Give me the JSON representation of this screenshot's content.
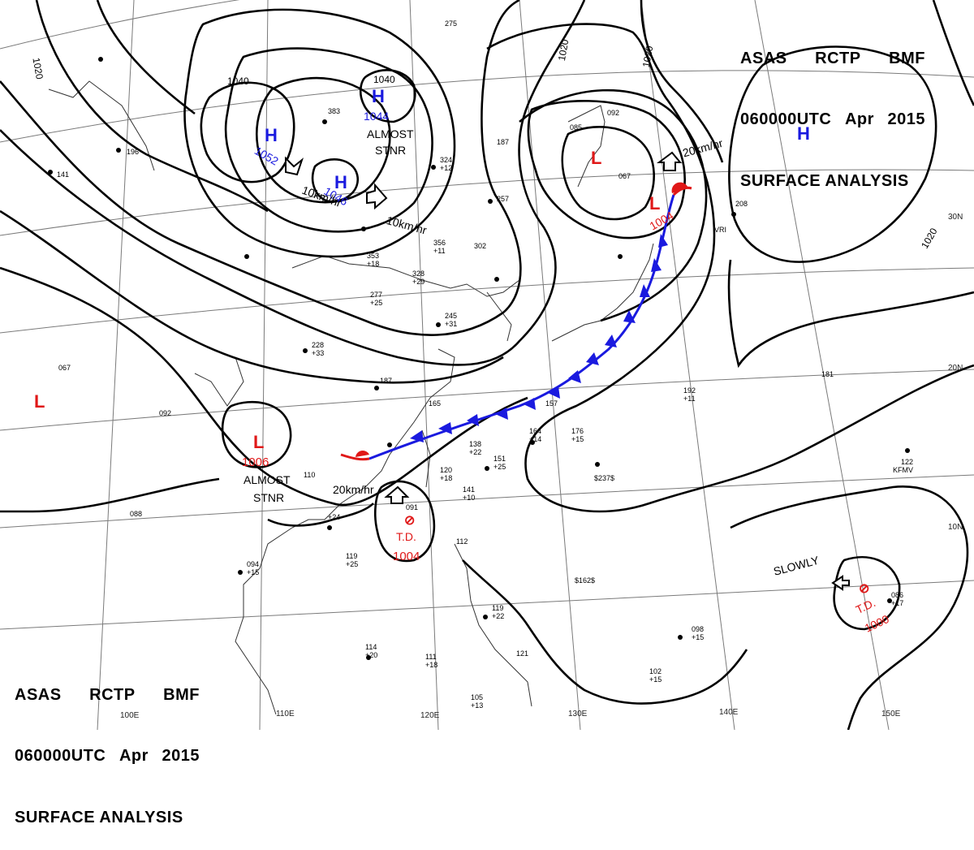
{
  "header": {
    "line1": [
      "ASAS",
      "RCTP",
      "BMF"
    ],
    "line2": [
      "060000UTC",
      "Apr",
      "2015"
    ],
    "line3": "SURFACE ANALYSIS"
  },
  "colors": {
    "high": "#1a1adf",
    "low": "#e01818",
    "isobar": "#000000",
    "grid": "#7a7a7a",
    "cold_front": "#1a1adf",
    "warm_front": "#e01818"
  },
  "latitude_labels": [
    "30N",
    "20N",
    "10N"
  ],
  "longitude_labels": [
    "100E",
    "110E",
    "120E",
    "130E",
    "140E",
    "150E"
  ],
  "isobar_labels": [
    "1020",
    "1020",
    "1020",
    "1020",
    "1040",
    "1040"
  ],
  "systems": [
    {
      "type": "H",
      "pressure": "1052"
    },
    {
      "type": "H",
      "pressure": "1044"
    },
    {
      "type": "H",
      "pressure": "1046"
    },
    {
      "type": "H",
      "pressure": ""
    },
    {
      "type": "L",
      "pressure": "1004"
    },
    {
      "type": "L",
      "pressure": "1006"
    },
    {
      "type": "L",
      "pressure": ""
    },
    {
      "type": "T.D.",
      "pressure": "1004"
    },
    {
      "type": "T.D.",
      "pressure": "1000"
    }
  ],
  "motion_labels": [
    "10km/hr",
    "10km/hr",
    "20km/hr",
    "20km/hr",
    "ALMOST",
    "STNR",
    "ALMOST",
    "STNR",
    "SLOWLY"
  ],
  "station_samples": [
    "275",
    "383",
    "196",
    "141",
    "324",
    "+12",
    "187",
    "085",
    "092",
    "067",
    "208",
    "257",
    "302",
    "356",
    "+11",
    "353",
    "+18",
    "328",
    "+29",
    "277",
    "+25",
    "245",
    "+31",
    "228",
    "+33",
    "187",
    "165",
    "157",
    "164",
    "+14",
    "176",
    "+15",
    "192",
    "+11",
    "181",
    "138",
    "+22",
    "151",
    "+25",
    "120",
    "+18",
    "141",
    "+10",
    "091",
    "110",
    "+24",
    "119",
    "+25",
    "094",
    "+15",
    "112",
    "114",
    "+20",
    "111",
    "+18",
    "105",
    "+13",
    "119",
    "+22",
    "121",
    "102",
    "+15",
    "098",
    "+15",
    "122",
    "086",
    "+17",
    "088",
    "067",
    "092",
    "$237$",
    "$162$",
    "KFMV",
    "VRI"
  ]
}
